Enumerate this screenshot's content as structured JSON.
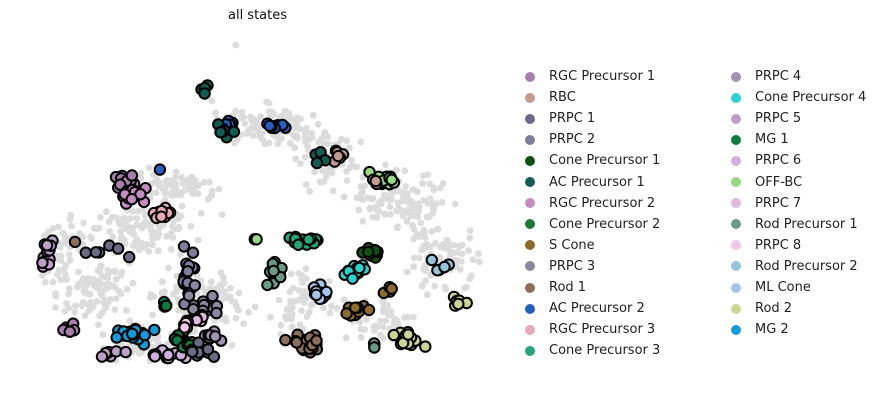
{
  "chart_data": {
    "type": "scatter",
    "title": "all states",
    "xlabel": "",
    "ylabel": "",
    "axes_visible": false,
    "legend_position": "right",
    "legend_columns": 2,
    "background_color": "#dcdcdc",
    "highlight_outline_color": "#000000",
    "series": [
      {
        "name": "RGC Precursor 1",
        "color": "#a77eac"
      },
      {
        "name": "RBC",
        "color": "#c19a90"
      },
      {
        "name": "PRPC 1",
        "color": "#6b6b86"
      },
      {
        "name": "PRPC 2",
        "color": "#7e7e9c"
      },
      {
        "name": "Cone Precursor 1",
        "color": "#125012"
      },
      {
        "name": "AC Precursor 1",
        "color": "#145c52"
      },
      {
        "name": "RGC Precursor 2",
        "color": "#c58cc1"
      },
      {
        "name": "Cone Precursor 2",
        "color": "#1d7a34"
      },
      {
        "name": "S Cone",
        "color": "#8c6a30"
      },
      {
        "name": "PRPC 3",
        "color": "#8b879e"
      },
      {
        "name": "Rod 1",
        "color": "#8c6e5c"
      },
      {
        "name": "AC Precursor 2",
        "color": "#2460bc"
      },
      {
        "name": "RGC Precursor 3",
        "color": "#e8a8b4"
      },
      {
        "name": "Cone Precursor 3",
        "color": "#28a478"
      },
      {
        "name": "PRPC 4",
        "color": "#a093b2"
      },
      {
        "name": "Cone Precursor 4",
        "color": "#2ed0ce"
      },
      {
        "name": "PRPC 5",
        "color": "#bda0c8"
      },
      {
        "name": "MG 1",
        "color": "#0e7a3e"
      },
      {
        "name": "PRPC 6",
        "color": "#cfb0dc"
      },
      {
        "name": "OFF-BC",
        "color": "#98d884"
      },
      {
        "name": "PRPC 7",
        "color": "#e0b8e0"
      },
      {
        "name": "Rod Precursor 1",
        "color": "#6a9a86"
      },
      {
        "name": "PRPC 8",
        "color": "#f4c8ec"
      },
      {
        "name": "Rod Precursor 2",
        "color": "#98c2d8"
      },
      {
        "name": "ML Cone",
        "color": "#a8c4e8"
      },
      {
        "name": "Rod 2",
        "color": "#ccd494"
      },
      {
        "name": "MG 2",
        "color": "#1898d4"
      }
    ]
  }
}
